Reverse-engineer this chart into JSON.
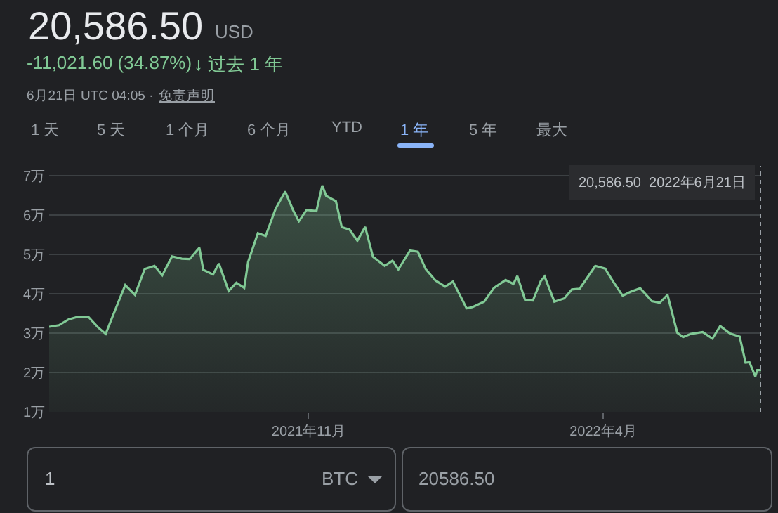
{
  "chart_data": {
    "type": "area",
    "title": "20,586.50",
    "annotations": [
      "USD",
      "-11,021.60 (34.87%)",
      "↓ 过去 1 年",
      "6月21日 UTC 04:05 ·",
      "免责声明",
      "1 天",
      "5 天",
      "1 个月",
      "6 个月",
      "YTD",
      "1 年",
      "5 年",
      "最大",
      "1",
      "BTC",
      "20586.50"
    ],
    "x": [
      "2021-06-21",
      "2021-06-26",
      "2021-07-01",
      "2021-07-06",
      "2021-07-11",
      "2021-07-16",
      "2021-07-20",
      "2021-07-23",
      "2021-07-26",
      "2021-07-30",
      "2021-08-04",
      "2021-08-09",
      "2021-08-14",
      "2021-08-18",
      "2021-08-23",
      "2021-08-28",
      "2021-09-01",
      "2021-09-06",
      "2021-09-08",
      "2021-09-13",
      "2021-09-16",
      "2021-09-21",
      "2021-09-25",
      "2021-09-29",
      "2021-10-01",
      "2021-10-06",
      "2021-10-10",
      "2021-10-15",
      "2021-10-20",
      "2021-10-24",
      "2021-10-27",
      "2021-10-31",
      "2021-11-05",
      "2021-11-08",
      "2021-11-10",
      "2021-11-15",
      "2021-11-18",
      "2021-11-22",
      "2021-11-26",
      "2021-11-30",
      "2021-12-04",
      "2021-12-10",
      "2021-12-14",
      "2021-12-17",
      "2021-12-23",
      "2021-12-27",
      "2021-12-31",
      "2022-01-05",
      "2022-01-10",
      "2022-01-14",
      "2022-01-21",
      "2022-01-24",
      "2022-01-30",
      "2022-02-04",
      "2022-02-10",
      "2022-02-14",
      "2022-02-16",
      "2022-02-20",
      "2022-02-24",
      "2022-02-28",
      "2022-03-02",
      "2022-03-07",
      "2022-03-12",
      "2022-03-16",
      "2022-03-20",
      "2022-03-28",
      "2022-04-02",
      "2022-04-06",
      "2022-04-11",
      "2022-04-15",
      "2022-04-20",
      "2022-04-26",
      "2022-04-30",
      "2022-05-04",
      "2022-05-09",
      "2022-05-12",
      "2022-05-16",
      "2022-05-22",
      "2022-05-27",
      "2022-05-31",
      "2022-06-05",
      "2022-06-10",
      "2022-06-13",
      "2022-06-15",
      "2022-06-18",
      "2022-06-19",
      "2022-06-21"
    ],
    "series": [
      {
        "color": "#81c995",
        "values": [
          3.16,
          3.2,
          3.35,
          3.42,
          3.42,
          3.15,
          2.98,
          3.36,
          3.73,
          4.22,
          3.97,
          4.63,
          4.71,
          4.47,
          4.95,
          4.89,
          4.88,
          5.17,
          4.61,
          4.49,
          4.77,
          4.07,
          4.28,
          4.15,
          4.81,
          5.54,
          5.47,
          6.15,
          6.6,
          6.13,
          5.84,
          6.13,
          6.1,
          6.75,
          6.49,
          6.35,
          5.69,
          5.63,
          5.35,
          5.7,
          4.94,
          4.71,
          4.84,
          4.62,
          5.1,
          5.07,
          4.63,
          4.34,
          4.18,
          4.31,
          3.63,
          3.66,
          3.8,
          4.15,
          4.35,
          4.25,
          4.45,
          3.84,
          3.83,
          4.32,
          4.44,
          3.8,
          3.88,
          4.11,
          4.13,
          4.71,
          4.64,
          4.32,
          3.95,
          4.05,
          4.14,
          3.81,
          3.77,
          3.97,
          3.01,
          2.9,
          2.98,
          3.03,
          2.86,
          3.18,
          2.99,
          2.91,
          2.25,
          2.26,
          1.9,
          2.06,
          2.06
        ]
      }
    ],
    "xlim": [
      "2021-06-21",
      "2022-06-21"
    ],
    "xticks": [
      {
        "value": "2021-11-01",
        "label": "2021年11月"
      },
      {
        "value": "2022-04-01",
        "label": "2022年4月"
      }
    ],
    "ylim": [
      1,
      7.25
    ],
    "yticks": [
      {
        "value": 1,
        "label": "1万"
      },
      {
        "value": 2,
        "label": "2万"
      },
      {
        "value": 3,
        "label": "3万"
      },
      {
        "value": 4,
        "label": "4万"
      },
      {
        "value": 5,
        "label": "5万"
      },
      {
        "value": 6,
        "label": "6万"
      },
      {
        "value": 7,
        "label": "7万"
      }
    ],
    "ref_lines": [
      {
        "axis": "x",
        "value": "2022-06-21",
        "label": "20,586.50  2022年6月21日",
        "line_style": "dotted",
        "color": "#9aa0a6"
      }
    ],
    "grid": "y"
  }
}
